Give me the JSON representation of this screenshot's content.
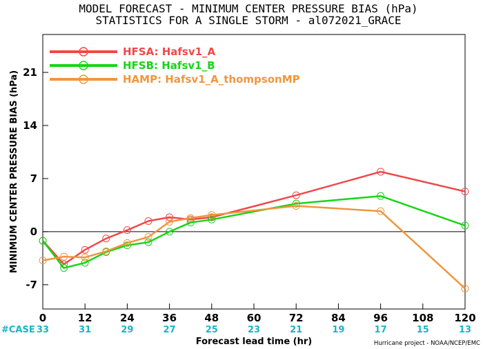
{
  "chart_data": {
    "type": "line",
    "title": "MODEL FORECAST - MINIMUM CENTER PRESSURE BIAS (hPa)",
    "subtitle": "STATISTICS FOR A SINGLE STORM - al072021_GRACE",
    "xlabel": "Forecast lead time (hr)",
    "ylabel": "MINIMUM CENTER PRESSURE BIAS (hPa)",
    "xlim": [
      0,
      120
    ],
    "ylim": [
      -10.2,
      26
    ],
    "x_ticks": [
      0,
      12,
      24,
      36,
      48,
      60,
      72,
      84,
      96,
      108,
      120
    ],
    "y_ticks": [
      -7,
      0,
      7,
      14,
      21
    ],
    "grid": false,
    "zero_line": true,
    "legend_position": "top-left",
    "case_label": "#CASE",
    "case_counts": [
      33,
      31,
      29,
      27,
      25,
      23,
      21,
      19,
      17,
      15,
      13
    ],
    "credit": "Hurricane project - NOAA/NCEP/EMC",
    "series": [
      {
        "name": "HFSA: Hafsv1_A",
        "color": "#f04848",
        "x": [
          0,
          6,
          12,
          18,
          24,
          30,
          36,
          42,
          48,
          72,
          96,
          120
        ],
        "y": [
          -1.2,
          -4.3,
          -2.4,
          -0.9,
          0.2,
          1.4,
          1.9,
          1.6,
          1.9,
          4.8,
          7.9,
          5.3
        ]
      },
      {
        "name": "HFSB: Hafsv1_B",
        "color": "#18d418",
        "x": [
          0,
          6,
          12,
          18,
          24,
          30,
          36,
          42,
          48,
          72,
          96,
          120
        ],
        "y": [
          -1.2,
          -4.8,
          -4.1,
          -2.7,
          -1.8,
          -1.4,
          0.0,
          1.2,
          1.6,
          3.7,
          4.7,
          0.8
        ]
      },
      {
        "name": "HAMP: Hafsv1_A_thompsonMP",
        "color": "#f0963c",
        "x": [
          0,
          6,
          12,
          18,
          24,
          30,
          36,
          42,
          48,
          72,
          96,
          120
        ],
        "y": [
          -3.8,
          -3.3,
          -3.4,
          -2.6,
          -1.5,
          -0.7,
          1.3,
          1.8,
          2.2,
          3.4,
          2.7,
          -7.5
        ]
      }
    ]
  }
}
